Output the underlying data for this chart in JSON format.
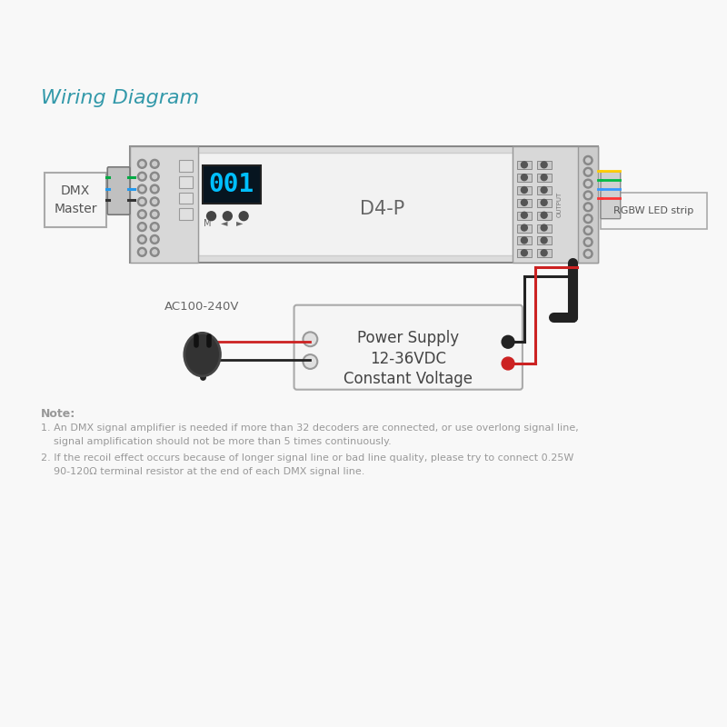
{
  "title": "Wiring Diagram",
  "title_color": "#3399aa",
  "title_fontsize": 16,
  "bg_color": "#f8f8f8",
  "note_color": "#999999",
  "note_text": "Note:",
  "note1": "1. An DMX signal amplifier is needed if more than 32 decoders are connected, or use overlong signal line,",
  "note1b": "    signal amplification should not be more than 5 times continuously.",
  "note2": "2. If the recoil effect occurs because of longer signal line or bad line quality, please try to connect 0.25W",
  "note2b": "    90-120Ω terminal resistor at the end of each DMX signal line.",
  "dmx_label": "DMX\nMaster",
  "d4p_label": "D4-P",
  "display_text": "001",
  "display_color": "#00bfff",
  "ps_line1": "Power Supply",
  "ps_line2": "12-36VDC",
  "ps_line3": "Constant Voltage",
  "ac_label": "AC100-240V",
  "rgbw_label": "RGBW LED strip"
}
